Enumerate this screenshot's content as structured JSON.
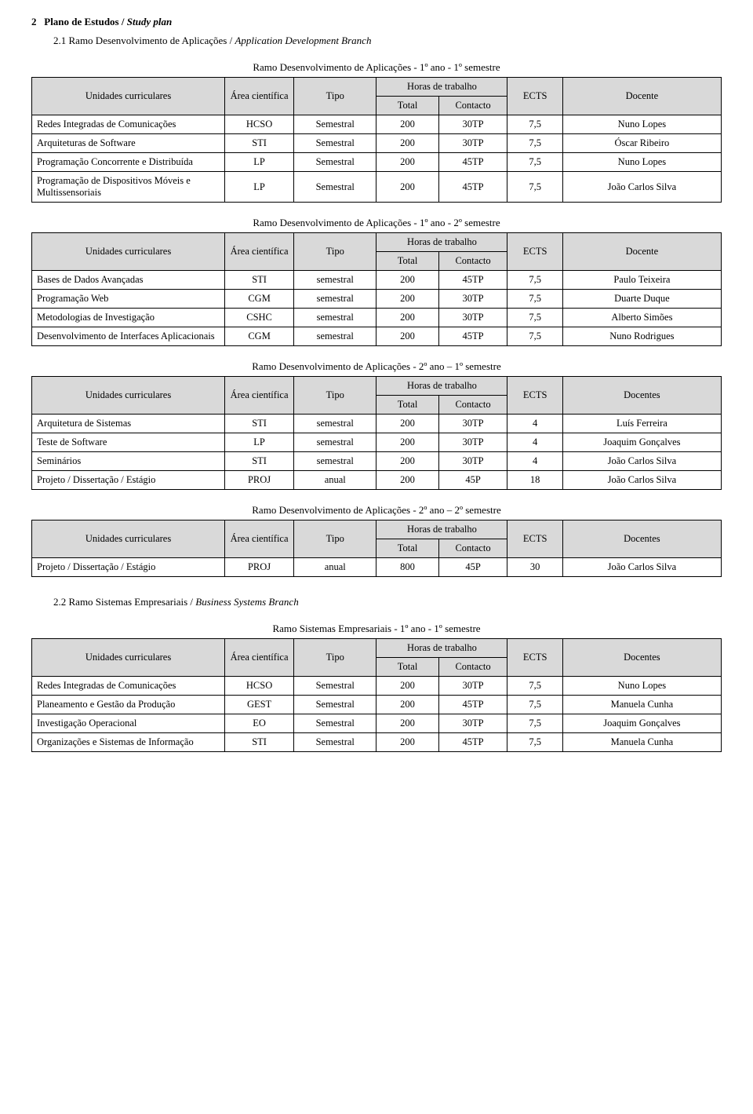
{
  "heading": {
    "num": "2",
    "title_pt": "Plano de Estudos",
    "title_en": "Study plan"
  },
  "sub21": {
    "num": "2.1",
    "title_pt": "Ramo Desenvolvimento de Aplicações",
    "title_en": "Application Development Branch"
  },
  "sub22": {
    "num": "2.2",
    "title_pt": "Ramo Sistemas Empresariais",
    "title_en": "Business Systems Branch"
  },
  "headers": {
    "unidades": "Unidades curriculares",
    "area": "Área científica",
    "tipo": "Tipo",
    "horas": "Horas de trabalho",
    "total": "Total",
    "contacto": "Contacto",
    "ects": "ECTS",
    "docente": "Docente",
    "docentes": "Docentes"
  },
  "tables": [
    {
      "caption": "Ramo Desenvolvimento de Aplicações - 1º ano - 1º semestre",
      "lastHeader": "docente",
      "rows": [
        {
          "name": "Redes Integradas de Comunicações",
          "area": "HCSO",
          "tipo": "Semestral",
          "total": "200",
          "contacto": "30TP",
          "ects": "7,5",
          "doc": "Nuno Lopes"
        },
        {
          "name": "Arquiteturas de Software",
          "area": "STI",
          "tipo": "Semestral",
          "total": "200",
          "contacto": "30TP",
          "ects": "7,5",
          "doc": "Óscar Ribeiro"
        },
        {
          "name": "Programação Concorrente e Distribuída",
          "area": "LP",
          "tipo": "Semestral",
          "total": "200",
          "contacto": "45TP",
          "ects": "7,5",
          "doc": "Nuno Lopes"
        },
        {
          "name": "Programação de Dispositivos Móveis e Multissensoriais",
          "area": "LP",
          "tipo": "Semestral",
          "total": "200",
          "contacto": "45TP",
          "ects": "7,5",
          "doc": "João Carlos Silva"
        }
      ]
    },
    {
      "caption": "Ramo Desenvolvimento de Aplicações - 1º ano - 2º semestre",
      "lastHeader": "docente",
      "rows": [
        {
          "name": "Bases de Dados Avançadas",
          "area": "STI",
          "tipo": "semestral",
          "total": "200",
          "contacto": "45TP",
          "ects": "7,5",
          "doc": "Paulo Teixeira"
        },
        {
          "name": "Programação Web",
          "area": "CGM",
          "tipo": "semestral",
          "total": "200",
          "contacto": "30TP",
          "ects": "7,5",
          "doc": "Duarte Duque"
        },
        {
          "name": "Metodologias de Investigação",
          "area": "CSHC",
          "tipo": "semestral",
          "total": "200",
          "contacto": "30TP",
          "ects": "7,5",
          "doc": "Alberto Simões"
        },
        {
          "name": "Desenvolvimento de Interfaces Aplicacionais",
          "area": "CGM",
          "tipo": "semestral",
          "total": "200",
          "contacto": "45TP",
          "ects": "7,5",
          "doc": "Nuno Rodrigues"
        }
      ]
    },
    {
      "caption": "Ramo Desenvolvimento de Aplicações - 2º ano – 1º semestre",
      "lastHeader": "docentes",
      "rows": [
        {
          "name": "Arquitetura de Sistemas",
          "area": "STI",
          "tipo": "semestral",
          "total": "200",
          "contacto": "30TP",
          "ects": "4",
          "doc": "Luís Ferreira"
        },
        {
          "name": "Teste de Software",
          "area": "LP",
          "tipo": "semestral",
          "total": "200",
          "contacto": "30TP",
          "ects": "4",
          "doc": "Joaquim Gonçalves"
        },
        {
          "name": "Seminários",
          "area": "STI",
          "tipo": "semestral",
          "total": "200",
          "contacto": "30TP",
          "ects": "4",
          "doc": "João Carlos Silva"
        },
        {
          "name": "Projeto / Dissertação / Estágio",
          "area": "PROJ",
          "tipo": "anual",
          "total": "200",
          "contacto": "45P",
          "ects": "18",
          "doc": "João Carlos Silva"
        }
      ]
    },
    {
      "caption": "Ramo Desenvolvimento de Aplicações - 2º ano – 2º semestre",
      "lastHeader": "docentes",
      "rows": [
        {
          "name": "Projeto / Dissertação / Estágio",
          "area": "PROJ",
          "tipo": "anual",
          "total": "800",
          "contacto": "45P",
          "ects": "30",
          "doc": "João Carlos Silva"
        }
      ]
    },
    {
      "caption": "Ramo Sistemas Empresariais - 1º ano - 1º semestre",
      "lastHeader": "docentes",
      "rows": [
        {
          "name": "Redes Integradas de Comunicações",
          "area": "HCSO",
          "tipo": "Semestral",
          "total": "200",
          "contacto": "30TP",
          "ects": "7,5",
          "doc": "Nuno Lopes"
        },
        {
          "name": "Planeamento e Gestão da Produção",
          "area": "GEST",
          "tipo": "Semestral",
          "total": "200",
          "contacto": "45TP",
          "ects": "7,5",
          "doc": "Manuela Cunha"
        },
        {
          "name": "Investigação Operacional",
          "area": "EO",
          "tipo": "Semestral",
          "total": "200",
          "contacto": "30TP",
          "ects": "7,5",
          "doc": "Joaquim Gonçalves"
        },
        {
          "name": "Organizações e Sistemas de Informação",
          "area": "STI",
          "tipo": "Semestral",
          "total": "200",
          "contacto": "45TP",
          "ects": "7,5",
          "doc": "Manuela Cunha"
        }
      ]
    }
  ]
}
